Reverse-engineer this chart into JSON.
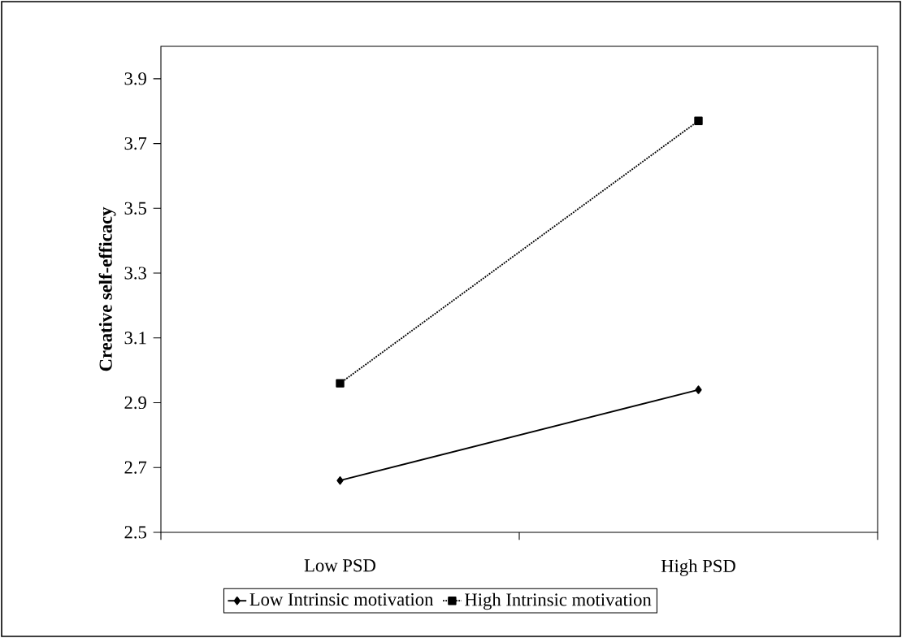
{
  "chart_data": {
    "type": "line",
    "ylabel": "Creative self-efficacy",
    "categories": [
      "Low PSD",
      "High PSD"
    ],
    "series": [
      {
        "name": "Low Intrinsic motivation",
        "color": "#000000",
        "values": [
          2.66,
          2.94
        ],
        "marker": "diamond",
        "line_style": "solid"
      },
      {
        "name": "High Intrinsic motivation",
        "color": "#000000",
        "values": [
          2.96,
          3.77
        ],
        "marker": "square",
        "line_style": "dotted"
      }
    ],
    "ylim": [
      2.5,
      4.0
    ],
    "yticks": [
      2.5,
      2.7,
      2.9,
      3.1,
      3.3,
      3.5,
      3.7,
      3.9
    ],
    "grid": false,
    "legend": "bottom"
  }
}
